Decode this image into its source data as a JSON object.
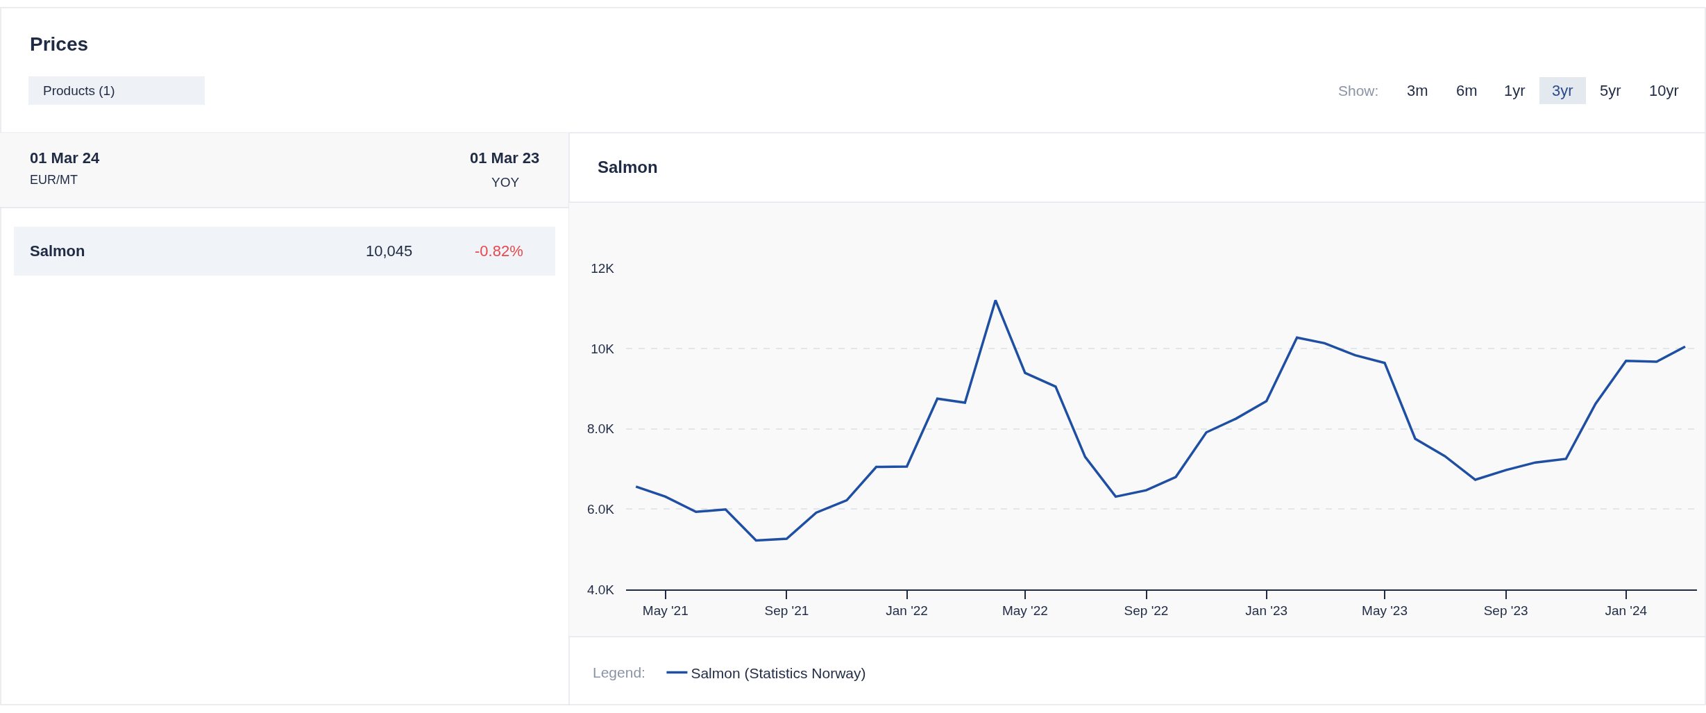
{
  "chart_data": [
    {
      "type": "other",
      "title": "Prices",
      "annotations": [
        "Products (1)",
        "Show:",
        "3m",
        "6m",
        "1yr",
        "3yr",
        "5yr",
        "10yr",
        "01 Mar 24",
        "EUR/MT",
        "01 Mar 23",
        "YOY",
        "Salmon",
        "10,045",
        "-0.82%"
      ]
    },
    {
      "type": "line",
      "title": "Salmon",
      "x": [
        "2021-04",
        "2021-05",
        "2021-06",
        "2021-07",
        "2021-08",
        "2021-09",
        "2021-10",
        "2021-11",
        "2021-12",
        "2022-01",
        "2022-02",
        "2022-03",
        "2022-04",
        "2022-05",
        "2022-06",
        "2022-07",
        "2022-08",
        "2022-09",
        "2022-10",
        "2022-11",
        "2022-12",
        "2023-01",
        "2023-02",
        "2023-03",
        "2023-04",
        "2023-05",
        "2023-06",
        "2023-07",
        "2023-08",
        "2023-09",
        "2023-10",
        "2023-11",
        "2023-12",
        "2024-01",
        "2024-02",
        "2024-03"
      ],
      "series": [
        {
          "name": "Salmon (Statistics Norway)",
          "color": "#1f4fa3",
          "values": [
            6560,
            6310,
            5930,
            5990,
            5220,
            5260,
            5910,
            6220,
            7050,
            7060,
            8750,
            8650,
            11200,
            9390,
            9050,
            7300,
            6310,
            6470,
            6800,
            7910,
            8250,
            8690,
            10270,
            10130,
            9830,
            9640,
            7750,
            7320,
            6730,
            6970,
            7160,
            7250,
            8620,
            9690,
            9670,
            10045
          ]
        }
      ],
      "xlim": [
        "2021-03-22",
        "2024-03-13"
      ],
      "xticks": [
        {
          "value": "2021-05-01",
          "label": "May '21"
        },
        {
          "value": "2021-09-01",
          "label": "Sep '21"
        },
        {
          "value": "2022-01-01",
          "label": "Jan '22"
        },
        {
          "value": "2022-05-01",
          "label": "May '22"
        },
        {
          "value": "2022-09-01",
          "label": "Sep '22"
        },
        {
          "value": "2023-01-01",
          "label": "Jan '23"
        },
        {
          "value": "2023-05-01",
          "label": "May '23"
        },
        {
          "value": "2023-09-01",
          "label": "Sep '23"
        },
        {
          "value": "2024-01-01",
          "label": "Jan '24"
        }
      ],
      "ylim": [
        4000,
        12000
      ],
      "yticks": [
        {
          "value": 4000,
          "label": "4.0K"
        },
        {
          "value": 6000,
          "label": "6.0K"
        },
        {
          "value": 8000,
          "label": "8.0K"
        },
        {
          "value": 10000,
          "label": "10K"
        },
        {
          "value": 12000,
          "label": "12K"
        }
      ],
      "grid": "y",
      "legend": "bottom",
      "legend_title": "Legend:",
      "line_style": "solid"
    }
  ]
}
